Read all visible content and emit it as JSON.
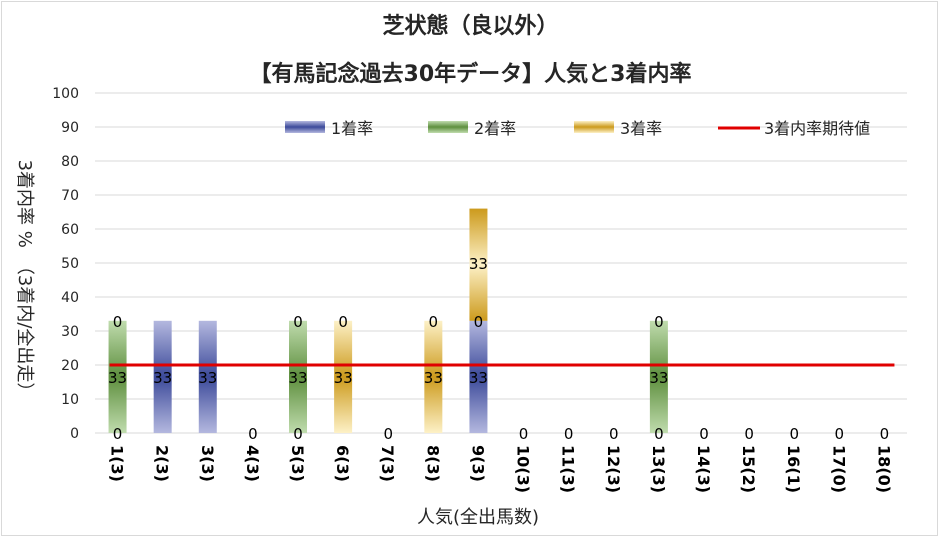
{
  "chart_data": {
    "type": "bar",
    "stacked": true,
    "title": "芝状態（良以外）",
    "subtitle": "【有馬記念過去30年データ】人気と3着内率",
    "xlabel": "人気(全出馬数)",
    "ylabel": "3着内率 %　（3着内/全出走）",
    "ylim": [
      0,
      100
    ],
    "yticks": [
      0,
      10,
      20,
      30,
      40,
      50,
      60,
      70,
      80,
      90,
      100
    ],
    "grid": true,
    "legend_position": "top-right",
    "categories": [
      "1(3)",
      "2(3)",
      "3(3)",
      "4(3)",
      "5(3)",
      "6(3)",
      "7(3)",
      "8(3)",
      "9(3)",
      "10(3)",
      "11(3)",
      "12(3)",
      "13(3)",
      "14(3)",
      "15(2)",
      "16(1)",
      "17(0)",
      "18(0)"
    ],
    "series": [
      {
        "name": "1着率",
        "color": "#3c4a9a",
        "values": [
          0,
          33,
          33,
          0,
          0,
          0,
          0,
          0,
          33,
          0,
          0,
          0,
          0,
          0,
          0,
          0,
          0,
          0
        ]
      },
      {
        "name": "2着率",
        "color": "#5e8f3e",
        "values": [
          33,
          0,
          0,
          0,
          33,
          0,
          0,
          0,
          0,
          0,
          0,
          0,
          33,
          0,
          0,
          0,
          0,
          0
        ]
      },
      {
        "name": "3着率",
        "color": "#cc9a1c",
        "values": [
          0,
          0,
          0,
          0,
          0,
          33,
          0,
          33,
          33,
          0,
          0,
          0,
          0,
          0,
          0,
          0,
          0,
          0
        ]
      }
    ],
    "data_labels": [
      [
        "0",
        "33",
        "0"
      ],
      [
        "33",
        "",
        ""
      ],
      [
        "33",
        "",
        ""
      ],
      [
        "0"
      ],
      [
        "0",
        "33",
        "0"
      ],
      [
        "33",
        "0"
      ],
      [
        "0"
      ],
      [
        "33",
        "0"
      ],
      [
        "0",
        "33",
        "33"
      ],
      [
        "0"
      ],
      [
        "0"
      ],
      [
        "0"
      ],
      [
        "0",
        "33",
        "0"
      ],
      [
        "0"
      ],
      [
        "0"
      ],
      [
        "0"
      ],
      [
        "0"
      ],
      [
        "0"
      ]
    ],
    "expected_line": {
      "name": "3着内率期待値",
      "value": 20,
      "color": "#e00000"
    }
  }
}
